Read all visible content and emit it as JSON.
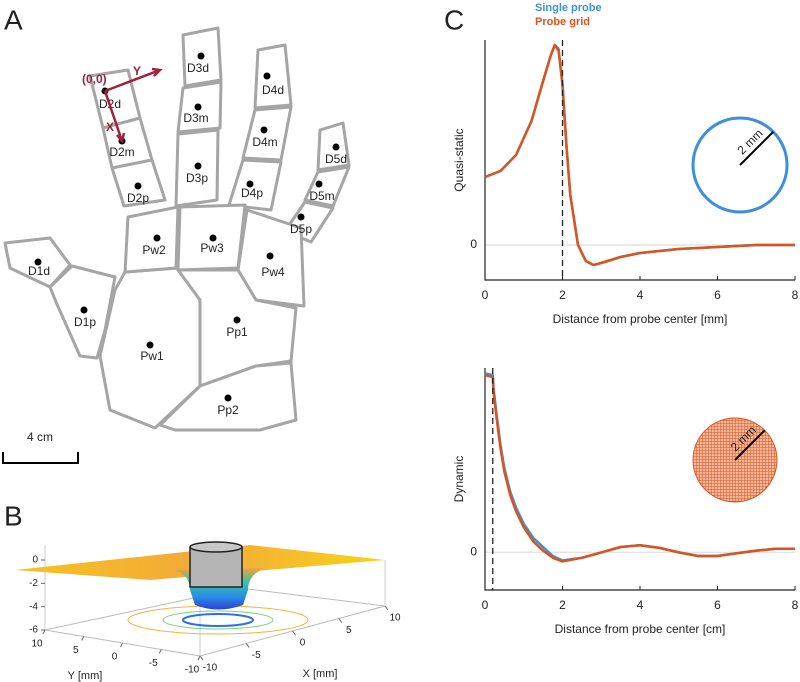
{
  "panel_labels": [
    "A",
    "B",
    "C"
  ],
  "hand": {
    "regions": [
      "D1d",
      "D1p",
      "D2d",
      "D2m",
      "D2p",
      "D3d",
      "D3m",
      "D3p",
      "D4d",
      "D4m",
      "D4p",
      "D5d",
      "D5m",
      "D5p",
      "Pw1",
      "Pw2",
      "Pw3",
      "Pw4",
      "Pp1",
      "Pp2"
    ],
    "origin_label": "(0,0)",
    "x_label": "X",
    "y_label": "Y",
    "scale_label": "4 cm"
  },
  "chart_data": [
    {
      "type": "surface",
      "zlim": [
        -6,
        0
      ],
      "zticks": [
        0,
        -2,
        -4,
        -6
      ],
      "ylim": [
        10,
        -10
      ],
      "yticks": [
        10,
        5,
        0,
        -5,
        -10
      ],
      "ylabel": "Y [mm]",
      "xlim": [
        -10,
        10
      ],
      "xticks": [
        -10,
        -5,
        0,
        5,
        10
      ],
      "xlabel": "X [mm]"
    },
    {
      "type": "line",
      "xlabel": "Distance from probe center [mm]",
      "ylabel": "Quasi-static",
      "xlim": [
        0,
        8
      ],
      "xticks": [
        0,
        2,
        4,
        6,
        8
      ],
      "ylim": [
        -0.175,
        1.025
      ],
      "yticks": [
        0
      ],
      "vline": 2,
      "inset_label": "2 mm",
      "legend": "upper right",
      "x": [
        0,
        0.4,
        0.8,
        1.2,
        1.5,
        1.7,
        1.8,
        1.9,
        2.0,
        2.1,
        2.2,
        2.4,
        2.6,
        2.8,
        3.0,
        3.5,
        4,
        5,
        6,
        7,
        8
      ],
      "series": [
        {
          "name": "Single probe",
          "color": "#3d8fdb",
          "values": [
            0.34,
            0.37,
            0.45,
            0.62,
            0.82,
            0.95,
            1.0,
            0.98,
            0.8,
            0.5,
            0.25,
            0.0,
            -0.08,
            -0.1,
            -0.09,
            -0.06,
            -0.04,
            -0.02,
            -0.01,
            0,
            0
          ]
        },
        {
          "name": "Probe grid",
          "color": "#d9541e",
          "values": [
            0.34,
            0.37,
            0.45,
            0.62,
            0.82,
            0.95,
            1.0,
            0.97,
            0.8,
            0.5,
            0.25,
            0.0,
            -0.08,
            -0.1,
            -0.09,
            -0.06,
            -0.04,
            -0.02,
            -0.01,
            0,
            0
          ]
        }
      ]
    },
    {
      "type": "line",
      "xlabel": "Distance from probe center [cm]",
      "ylabel": "Dynamic",
      "xlim": [
        0,
        8
      ],
      "xticks": [
        0,
        2,
        4,
        6,
        8
      ],
      "ylim": [
        -0.21,
        1.03
      ],
      "yticks": [
        0
      ],
      "vline": 0.2,
      "inset_label": "2 mm",
      "x": [
        0,
        0.2,
        0.22,
        0.3,
        0.4,
        0.5,
        0.65,
        0.8,
        1.0,
        1.25,
        1.5,
        1.75,
        2.0,
        2.5,
        3.0,
        3.5,
        4.0,
        4.5,
        5.0,
        5.5,
        6.0,
        6.5,
        7.0,
        7.5,
        8.0
      ],
      "series": [
        {
          "color": "#3d8fdb",
          "values": [
            1.0,
            0.99,
            0.92,
            0.77,
            0.6,
            0.47,
            0.34,
            0.25,
            0.16,
            0.08,
            0.03,
            -0.02,
            -0.045,
            -0.03,
            0.0,
            0.03,
            0.04,
            0.025,
            0.0,
            -0.02,
            -0.02,
            -0.005,
            0.01,
            0.02,
            0.02
          ]
        },
        {
          "color": "#d9541e",
          "values": [
            0.99,
            0.98,
            0.9,
            0.75,
            0.58,
            0.45,
            0.32,
            0.23,
            0.14,
            0.06,
            0.01,
            -0.03,
            -0.05,
            -0.03,
            0.0,
            0.03,
            0.04,
            0.025,
            0.0,
            -0.02,
            -0.02,
            -0.005,
            0.01,
            0.02,
            0.02
          ]
        }
      ]
    }
  ]
}
